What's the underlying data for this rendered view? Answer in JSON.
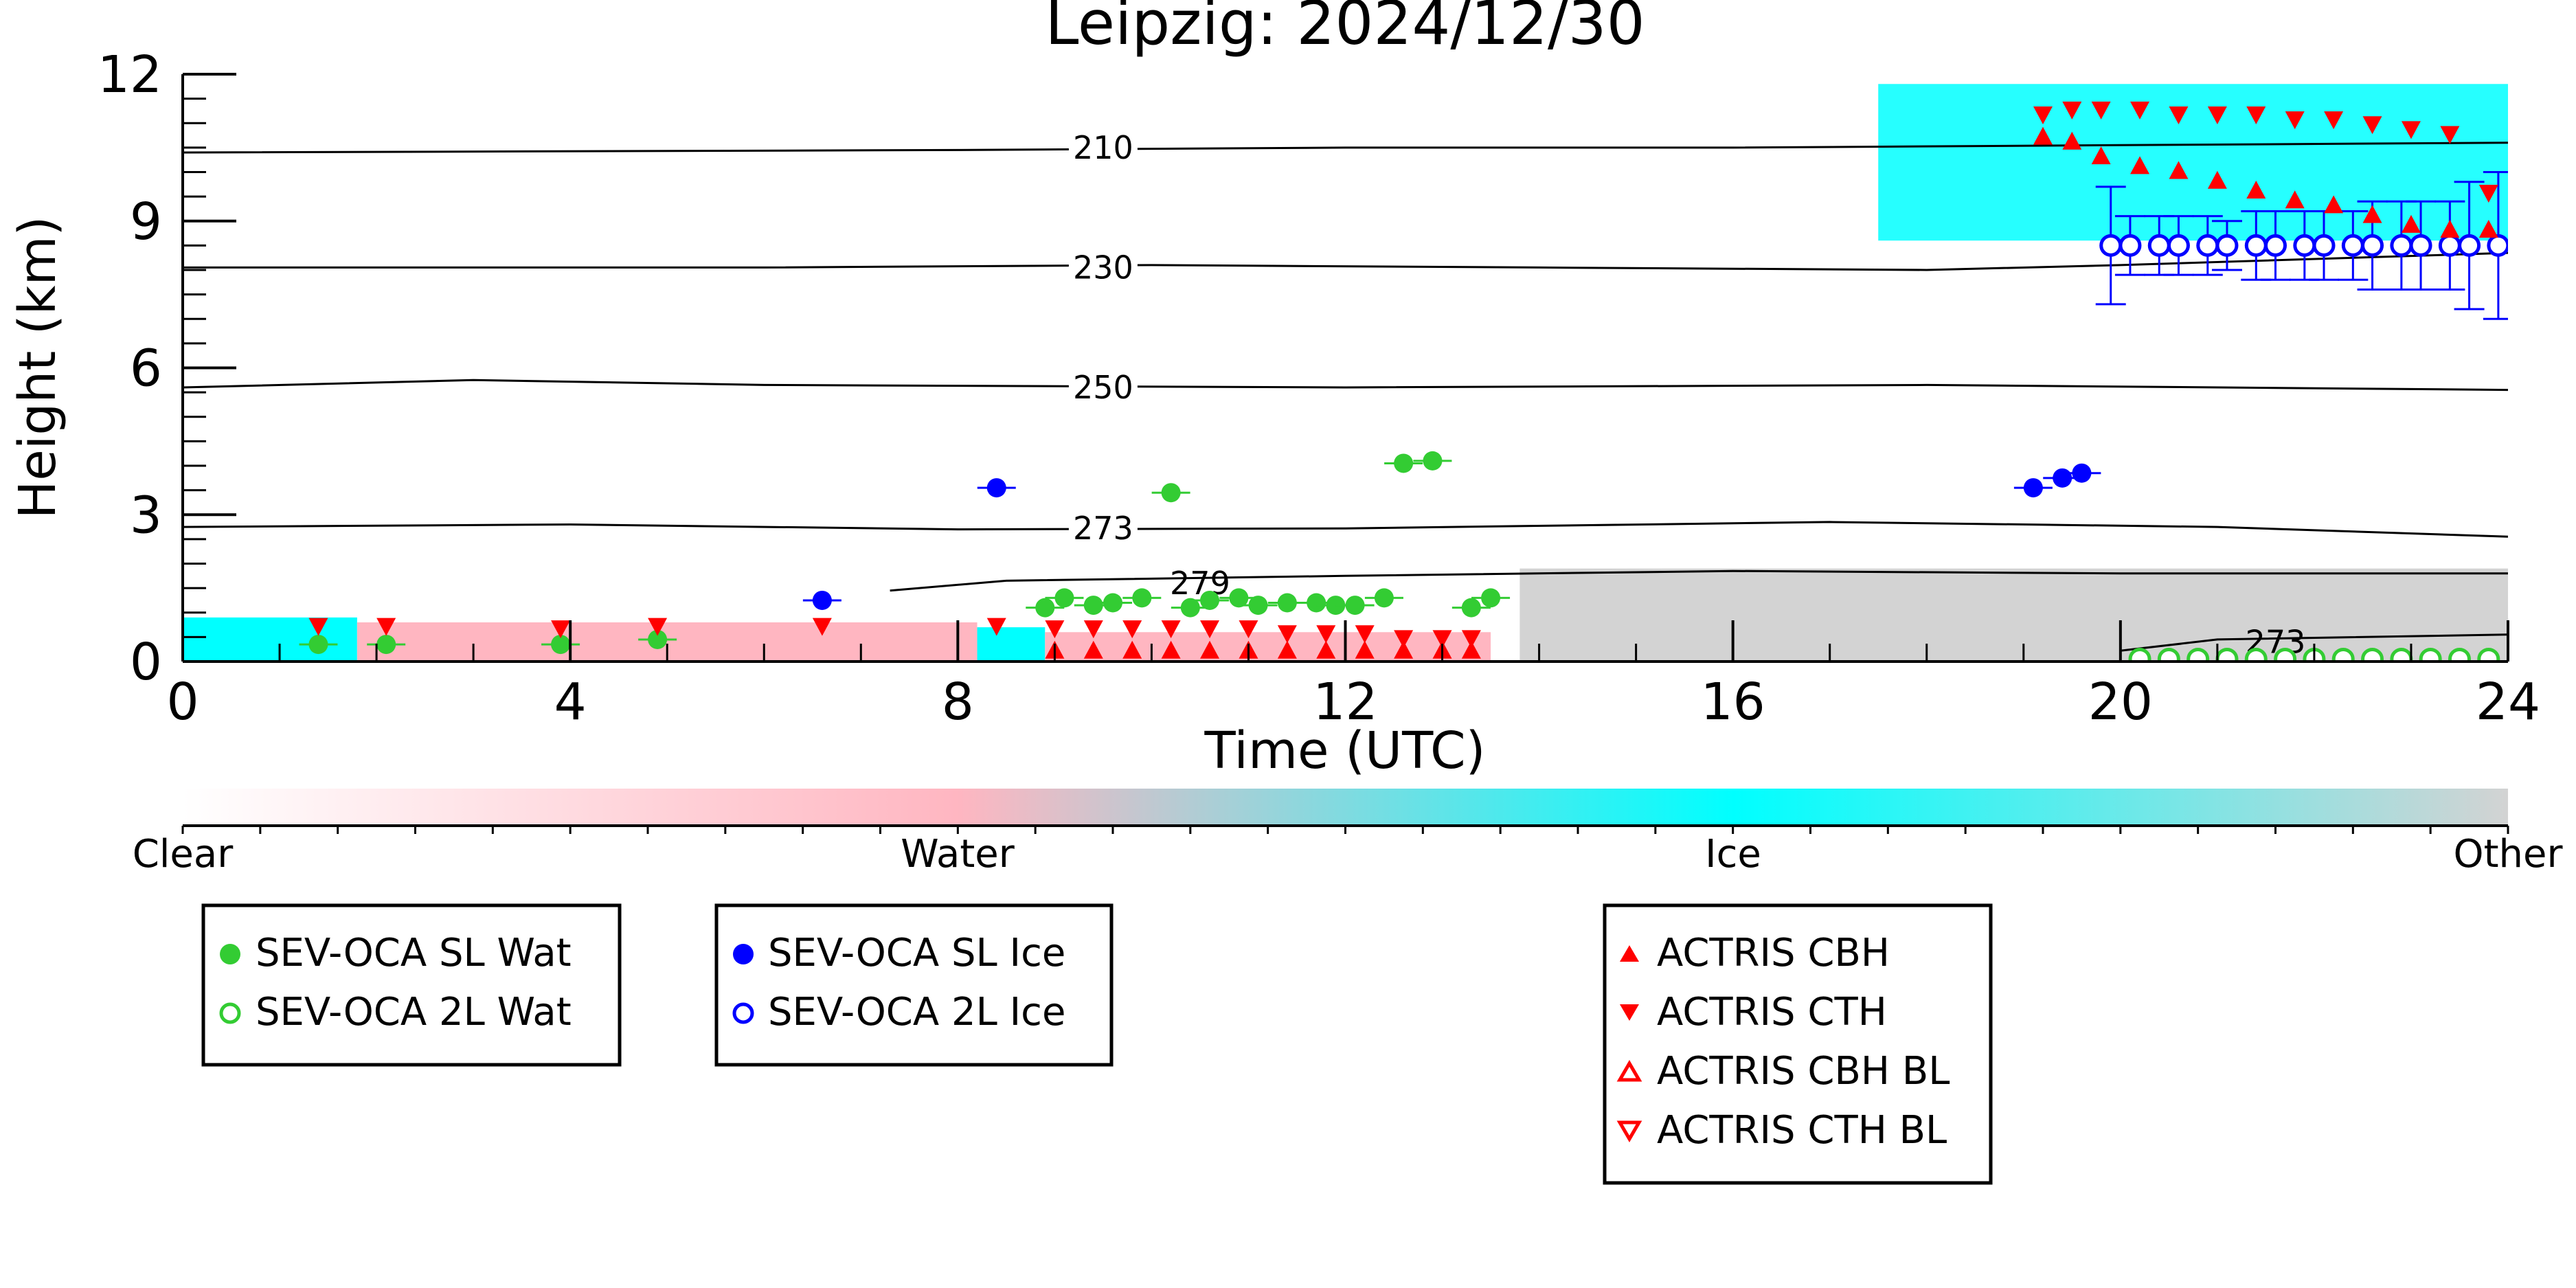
{
  "chart_data": {
    "type": "scatter",
    "title": "Leipzig: 2024/12/30",
    "xlabel": "Time (UTC)",
    "ylabel": "Height (km)",
    "xlim": [
      0,
      24
    ],
    "ylim": [
      0,
      12
    ],
    "xticks": [
      "0",
      "4",
      "8",
      "12",
      "16",
      "20",
      "24"
    ],
    "yticks": [
      "0",
      "3",
      "6",
      "9",
      "12"
    ],
    "grid": false,
    "colors": {
      "clear": "#ffffff",
      "water": "#ffb6c1",
      "ice": "#00ffff",
      "other": "#d3d3d3",
      "sl_wat": "#33cc33",
      "ice_marker": "#0000ff",
      "actris": "#ff0000"
    },
    "colorbar": {
      "labels": [
        "Clear",
        "Water",
        "Ice",
        "Other"
      ]
    },
    "contours": [
      {
        "label": "210",
        "points": [
          [
            0,
            10.4
          ],
          [
            8,
            10.45
          ],
          [
            12,
            10.5
          ],
          [
            16,
            10.5
          ],
          [
            20,
            10.55
          ],
          [
            24,
            10.6
          ]
        ]
      },
      {
        "label": "230",
        "points": [
          [
            0,
            8.05
          ],
          [
            6,
            8.05
          ],
          [
            10,
            8.1
          ],
          [
            14,
            8.05
          ],
          [
            18,
            8.0
          ],
          [
            20,
            8.1
          ],
          [
            24,
            8.35
          ]
        ]
      },
      {
        "label": "250",
        "points": [
          [
            0,
            5.6
          ],
          [
            3,
            5.75
          ],
          [
            6,
            5.65
          ],
          [
            12,
            5.6
          ],
          [
            18,
            5.65
          ],
          [
            24,
            5.55
          ]
        ]
      },
      {
        "label": "273",
        "points": [
          [
            0,
            2.75
          ],
          [
            4,
            2.8
          ],
          [
            8,
            2.7
          ],
          [
            12,
            2.72
          ],
          [
            17,
            2.85
          ],
          [
            21,
            2.75
          ],
          [
            24,
            2.55
          ]
        ]
      },
      {
        "label": "279",
        "points": [
          [
            7.3,
            1.45
          ],
          [
            8.5,
            1.65
          ],
          [
            12,
            1.75
          ],
          [
            16,
            1.85
          ],
          [
            20,
            1.8
          ],
          [
            24,
            1.8
          ]
        ]
      },
      {
        "label": "273",
        "points": [
          [
            20,
            0.22
          ],
          [
            21,
            0.45
          ],
          [
            24,
            0.55
          ]
        ]
      }
    ],
    "cloud_type_regions": [
      {
        "type": "ice",
        "x": [
          0,
          1.8
        ],
        "y": [
          0,
          0.9
        ]
      },
      {
        "type": "water",
        "x": [
          1.8,
          8.2
        ],
        "y": [
          0,
          0.8
        ]
      },
      {
        "type": "ice",
        "x": [
          8.2,
          8.9
        ],
        "y": [
          0,
          0.7
        ]
      },
      {
        "type": "water",
        "x": [
          8.9,
          13.5
        ],
        "y": [
          0,
          0.6
        ]
      },
      {
        "type": "other",
        "x": [
          13.8,
          24
        ],
        "y": [
          0,
          1.9
        ]
      },
      {
        "type": "ice",
        "x": [
          17.5,
          24
        ],
        "y": [
          8.6,
          11.8
        ]
      }
    ],
    "series": [
      {
        "name": "SEV-OCA SL Wat",
        "marker": "filled-circle",
        "color": "#33cc33",
        "x": [
          1.4,
          2.1,
          3.9,
          4.9,
          8.9,
          9.1,
          9.4,
          9.6,
          9.9,
          10.2,
          10.4,
          10.6,
          10.9,
          11.1,
          11.4,
          11.7,
          11.9,
          12.1,
          12.4,
          12.6,
          12.9,
          13.3,
          13.5
        ],
        "y": [
          0.35,
          0.35,
          0.35,
          0.45,
          1.1,
          1.3,
          1.15,
          1.2,
          1.3,
          3.45,
          1.1,
          1.25,
          1.3,
          1.15,
          1.2,
          1.2,
          1.15,
          1.15,
          1.3,
          4.05,
          4.1,
          1.1,
          1.3
        ]
      },
      {
        "name": "SEV-OCA 2L Wat",
        "marker": "open-circle",
        "color": "#33cc33",
        "x": [
          20.2,
          20.5,
          20.8,
          21.1,
          21.4,
          21.7,
          22.0,
          22.3,
          22.6,
          22.9,
          23.2,
          23.5,
          23.8
        ],
        "y": [
          0.05,
          0.05,
          0.05,
          0.05,
          0.05,
          0.05,
          0.05,
          0.05,
          0.05,
          0.05,
          0.05,
          0.05,
          0.05
        ]
      },
      {
        "name": "SEV-OCA SL Ice",
        "marker": "filled-circle",
        "color": "#0000ff",
        "x": [
          6.6,
          8.4,
          19.1,
          19.4,
          19.6
        ],
        "y": [
          1.25,
          3.55,
          3.55,
          3.75,
          3.85
        ]
      },
      {
        "name": "SEV-OCA 2L Ice",
        "marker": "open-circle",
        "color": "#0000ff",
        "x": [
          19.9,
          20.1,
          20.4,
          20.6,
          20.9,
          21.1,
          21.4,
          21.6,
          21.9,
          22.1,
          22.4,
          22.6,
          22.9,
          23.1,
          23.4,
          23.6,
          23.9
        ],
        "y": [
          8.5,
          8.5,
          8.5,
          8.5,
          8.5,
          8.5,
          8.5,
          8.5,
          8.5,
          8.5,
          8.5,
          8.5,
          8.5,
          8.5,
          8.5,
          8.5,
          8.5
        ],
        "err": [
          1.2,
          0.6,
          0.6,
          0.6,
          0.6,
          0.5,
          0.7,
          0.7,
          0.7,
          0.7,
          0.7,
          0.9,
          0.9,
          0.9,
          0.9,
          1.3,
          1.5
        ]
      },
      {
        "name": "ACTRIS CBH",
        "marker": "filled-triangle-up",
        "color": "#ff0000",
        "x": [
          19.2,
          19.5,
          19.8,
          20.2,
          20.6,
          21.0,
          21.4,
          21.8,
          22.2,
          22.6,
          23.0,
          23.4,
          23.8,
          9.0,
          9.4,
          9.8,
          10.2,
          10.6,
          11.0,
          11.4,
          11.8,
          12.2,
          12.6,
          13.0,
          13.3
        ],
        "y": [
          10.7,
          10.6,
          10.3,
          10.1,
          10.0,
          9.8,
          9.6,
          9.4,
          9.3,
          9.1,
          8.9,
          8.8,
          8.8,
          0.2,
          0.2,
          0.2,
          0.2,
          0.2,
          0.2,
          0.2,
          0.2,
          0.2,
          0.2,
          0.2,
          0.2
        ]
      },
      {
        "name": "ACTRIS CTH",
        "marker": "filled-triangle-down",
        "color": "#ff0000",
        "x": [
          1.4,
          2.1,
          3.9,
          4.9,
          6.6,
          8.4,
          9.0,
          9.4,
          9.8,
          10.2,
          10.6,
          11.0,
          11.4,
          11.8,
          12.2,
          12.6,
          13.0,
          13.3,
          19.2,
          19.5,
          19.8,
          20.2,
          20.6,
          21.0,
          21.4,
          21.8,
          22.2,
          22.6,
          23.0,
          23.4,
          23.8
        ],
        "y": [
          0.75,
          0.75,
          0.7,
          0.75,
          0.75,
          0.75,
          0.7,
          0.7,
          0.7,
          0.7,
          0.7,
          0.7,
          0.6,
          0.6,
          0.6,
          0.5,
          0.5,
          0.5,
          11.2,
          11.3,
          11.3,
          11.3,
          11.2,
          11.2,
          11.2,
          11.1,
          11.1,
          11.0,
          10.9,
          10.8,
          9.6
        ]
      }
    ],
    "legends": [
      [
        "SEV-OCA SL Wat",
        "SEV-OCA 2L Wat"
      ],
      [
        "SEV-OCA SL Ice",
        "SEV-OCA 2L Ice"
      ],
      [
        "ACTRIS CBH",
        "ACTRIS CTH",
        "ACTRIS CBH BL",
        "ACTRIS CTH BL"
      ]
    ]
  }
}
